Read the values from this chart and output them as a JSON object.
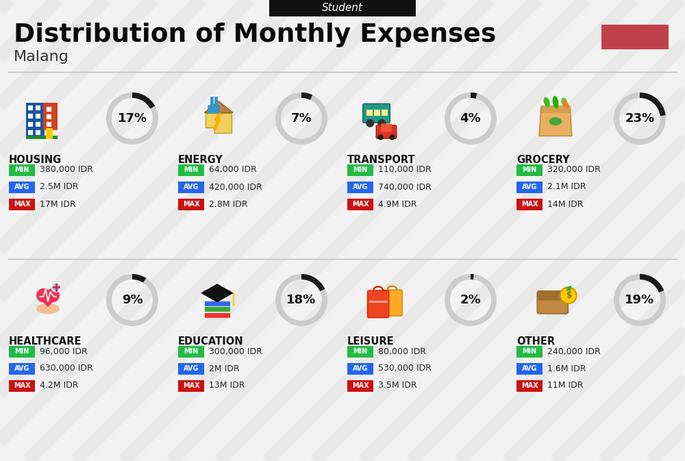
{
  "title": "Distribution of Monthly Expenses",
  "subtitle": "Malang",
  "header_label": "Student",
  "bg_color": "#f2f2f2",
  "red_rect_color": "#c0404a",
  "categories": [
    {
      "name": "HOUSING",
      "percent": 17,
      "col": 0,
      "row": 0,
      "min": "380,000 IDR",
      "avg": "2.5M IDR",
      "max": "17M IDR"
    },
    {
      "name": "ENERGY",
      "percent": 7,
      "col": 1,
      "row": 0,
      "min": "64,000 IDR",
      "avg": "420,000 IDR",
      "max": "2.8M IDR"
    },
    {
      "name": "TRANSPORT",
      "percent": 4,
      "col": 2,
      "row": 0,
      "min": "110,000 IDR",
      "avg": "740,000 IDR",
      "max": "4.9M IDR"
    },
    {
      "name": "GROCERY",
      "percent": 23,
      "col": 3,
      "row": 0,
      "min": "320,000 IDR",
      "avg": "2.1M IDR",
      "max": "14M IDR"
    },
    {
      "name": "HEALTHCARE",
      "percent": 9,
      "col": 0,
      "row": 1,
      "min": "96,000 IDR",
      "avg": "630,000 IDR",
      "max": "4.2M IDR"
    },
    {
      "name": "EDUCATION",
      "percent": 18,
      "col": 1,
      "row": 1,
      "min": "300,000 IDR",
      "avg": "2M IDR",
      "max": "13M IDR"
    },
    {
      "name": "LEISURE",
      "percent": 2,
      "col": 2,
      "row": 1,
      "min": "80,000 IDR",
      "avg": "530,000 IDR",
      "max": "3.5M IDR"
    },
    {
      "name": "OTHER",
      "percent": 19,
      "col": 3,
      "row": 1,
      "min": "240,000 IDR",
      "avg": "1.6M IDR",
      "max": "11M IDR"
    }
  ],
  "color_min": "#22bb44",
  "color_avg": "#2266ee",
  "color_max": "#cc1111",
  "donut_dark": "#1a1a1a",
  "donut_light": "#cccccc",
  "stripe_color": "#d8d8d8"
}
